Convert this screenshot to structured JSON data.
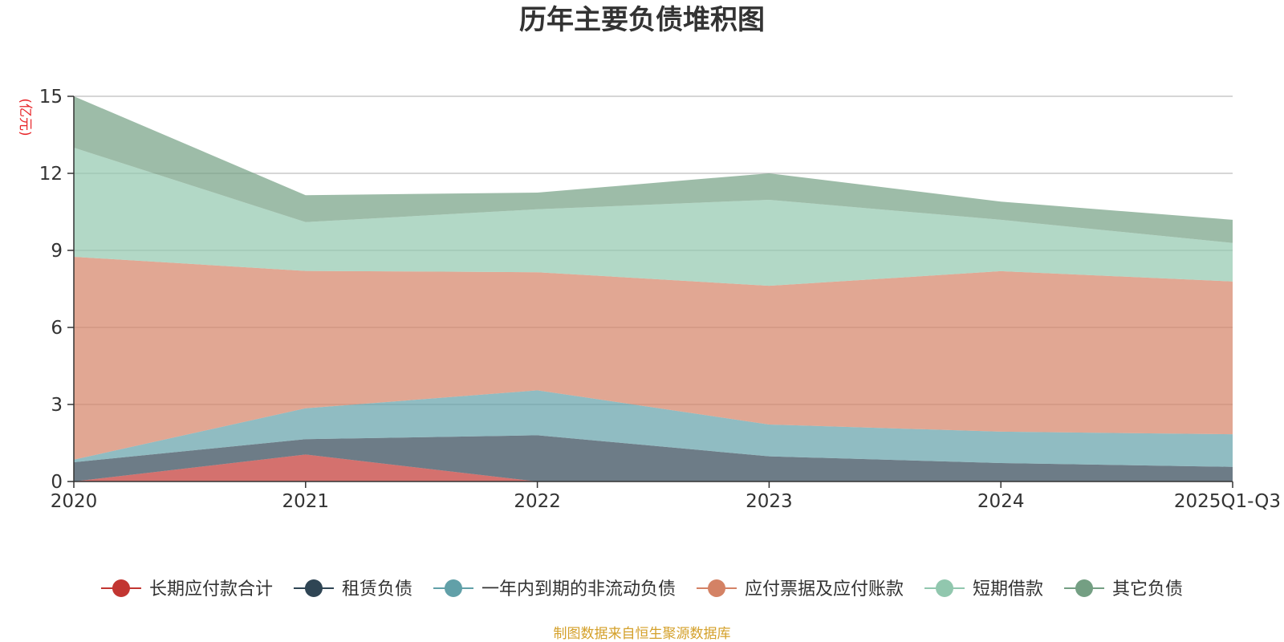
{
  "chart_data": {
    "type": "area",
    "stacked": true,
    "title": "历年主要负债堆积图",
    "unit_label": "(亿元)",
    "source_note": "制图数据来自恒生聚源数据库",
    "categories": [
      "2020",
      "2021",
      "2022",
      "2023",
      "2024",
      "2025Q1-Q3"
    ],
    "ylim": [
      0,
      15
    ],
    "yticks": [
      0,
      3,
      6,
      9,
      12,
      15
    ],
    "grid": true,
    "legend_position": "bottom",
    "series": [
      {
        "name": "长期应付款合计",
        "color": "#c23531",
        "values": [
          0.0,
          1.05,
          0.0,
          0.0,
          0.0,
          0.0
        ]
      },
      {
        "name": "租赁负债",
        "color": "#2f4554",
        "values": [
          0.75,
          0.6,
          1.8,
          0.98,
          0.72,
          0.57
        ]
      },
      {
        "name": "一年内到期的非流动负债",
        "color": "#61a0a8",
        "values": [
          0.1,
          1.2,
          1.75,
          1.24,
          1.22,
          1.27
        ]
      },
      {
        "name": "应付票据及应付账款",
        "color": "#d48265",
        "values": [
          7.9,
          5.35,
          4.6,
          5.4,
          6.25,
          5.95
        ]
      },
      {
        "name": "短期借款",
        "color": "#91c7ae",
        "values": [
          4.25,
          1.9,
          2.45,
          3.35,
          2.0,
          1.5
        ]
      },
      {
        "name": "其它负债",
        "color": "#749f83",
        "values": [
          2.0,
          1.05,
          0.65,
          1.03,
          0.71,
          0.9
        ]
      }
    ]
  }
}
